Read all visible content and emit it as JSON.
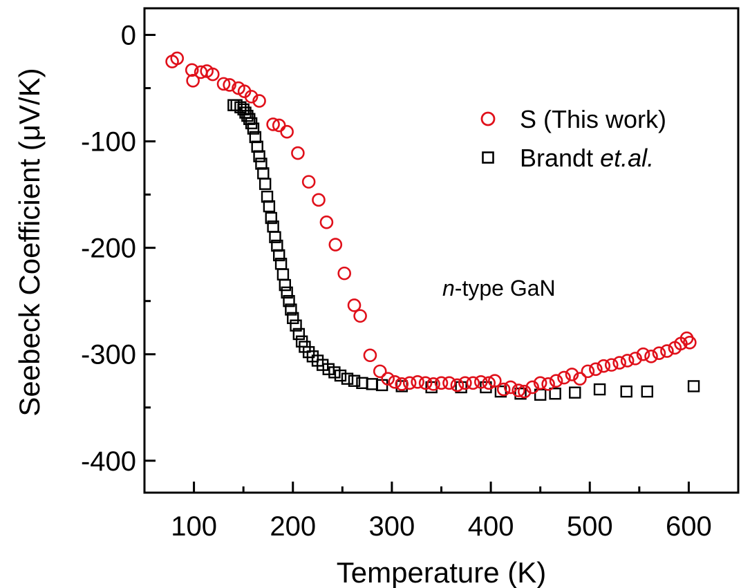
{
  "chart_data": {
    "type": "scatter",
    "title": "",
    "xlabel": "Temperature (K)",
    "ylabel": "Seebeck Coefficient (μV/K)",
    "xlim": [
      50,
      650
    ],
    "ylim": [
      -430,
      25
    ],
    "xticks": [
      100,
      200,
      300,
      400,
      500,
      600
    ],
    "yticks": [
      0,
      -100,
      -200,
      -300,
      -400
    ],
    "xtick_labels": [
      "100",
      "200",
      "300",
      "400",
      "500",
      "600"
    ],
    "ytick_labels": [
      "0",
      "-100",
      "-200",
      "-300",
      "-400"
    ],
    "grid": false,
    "legend_position": "top-right",
    "annotation": {
      "italic": "n",
      "rest": "-type GaN"
    },
    "series": [
      {
        "name": "S (This work)",
        "marker": "circle",
        "color": "#e0101a",
        "legend_parts": [
          {
            "text": "S (This work)",
            "italic": false
          }
        ],
        "points": [
          [
            78,
            -25
          ],
          [
            83,
            -22
          ],
          [
            98,
            -33
          ],
          [
            99,
            -43
          ],
          [
            107,
            -35
          ],
          [
            113,
            -34
          ],
          [
            119,
            -37
          ],
          [
            130,
            -46
          ],
          [
            136,
            -47
          ],
          [
            145,
            -50
          ],
          [
            151,
            -53
          ],
          [
            158,
            -58
          ],
          [
            166,
            -62
          ],
          [
            180,
            -84
          ],
          [
            186,
            -85
          ],
          [
            194,
            -91
          ],
          [
            205,
            -111
          ],
          [
            216,
            -138
          ],
          [
            226,
            -155
          ],
          [
            234,
            -176
          ],
          [
            243,
            -197
          ],
          [
            252,
            -224
          ],
          [
            262,
            -254
          ],
          [
            268,
            -264
          ],
          [
            278,
            -301
          ],
          [
            288,
            -316
          ],
          [
            296,
            -323
          ],
          [
            303,
            -326
          ],
          [
            310,
            -328
          ],
          [
            318,
            -327
          ],
          [
            326,
            -326
          ],
          [
            334,
            -327
          ],
          [
            342,
            -328
          ],
          [
            350,
            -327
          ],
          [
            358,
            -327
          ],
          [
            366,
            -329
          ],
          [
            374,
            -327
          ],
          [
            382,
            -327
          ],
          [
            390,
            -326
          ],
          [
            398,
            -327
          ],
          [
            404,
            -325
          ],
          [
            413,
            -333
          ],
          [
            420,
            -331
          ],
          [
            428,
            -334
          ],
          [
            434,
            -335
          ],
          [
            442,
            -331
          ],
          [
            450,
            -327
          ],
          [
            458,
            -328
          ],
          [
            466,
            -325
          ],
          [
            474,
            -322
          ],
          [
            482,
            -319
          ],
          [
            490,
            -323
          ],
          [
            498,
            -316
          ],
          [
            506,
            -314
          ],
          [
            514,
            -311
          ],
          [
            522,
            -310
          ],
          [
            530,
            -308
          ],
          [
            538,
            -306
          ],
          [
            546,
            -304
          ],
          [
            554,
            -300
          ],
          [
            562,
            -302
          ],
          [
            570,
            -299
          ],
          [
            578,
            -297
          ],
          [
            586,
            -294
          ],
          [
            592,
            -290
          ],
          [
            598,
            -285
          ],
          [
            601,
            -289
          ]
        ]
      },
      {
        "name": "Brandt et.al.",
        "marker": "square",
        "color": "#000000",
        "legend_parts": [
          {
            "text": "Brandt ",
            "italic": false
          },
          {
            "text": "et.al.",
            "italic": true
          }
        ],
        "points": [
          [
            140,
            -66
          ],
          [
            143,
            -66
          ],
          [
            147,
            -68
          ],
          [
            150,
            -70
          ],
          [
            152,
            -73
          ],
          [
            154,
            -76
          ],
          [
            156,
            -79
          ],
          [
            158,
            -83
          ],
          [
            160,
            -88
          ],
          [
            162,
            -96
          ],
          [
            164,
            -105
          ],
          [
            166,
            -114
          ],
          [
            168,
            -121
          ],
          [
            170,
            -130
          ],
          [
            172,
            -140
          ],
          [
            174,
            -152
          ],
          [
            176,
            -161
          ],
          [
            178,
            -172
          ],
          [
            180,
            -180
          ],
          [
            182,
            -190
          ],
          [
            184,
            -198
          ],
          [
            186,
            -207
          ],
          [
            188,
            -215
          ],
          [
            190,
            -225
          ],
          [
            192,
            -235
          ],
          [
            194,
            -242
          ],
          [
            196,
            -250
          ],
          [
            198,
            -258
          ],
          [
            200,
            -266
          ],
          [
            203,
            -273
          ],
          [
            206,
            -281
          ],
          [
            209,
            -288
          ],
          [
            212,
            -293
          ],
          [
            216,
            -298
          ],
          [
            220,
            -302
          ],
          [
            225,
            -306
          ],
          [
            230,
            -310
          ],
          [
            236,
            -314
          ],
          [
            242,
            -317
          ],
          [
            248,
            -320
          ],
          [
            255,
            -323
          ],
          [
            262,
            -325
          ],
          [
            270,
            -327
          ],
          [
            280,
            -328
          ],
          [
            290,
            -329
          ],
          [
            310,
            -330
          ],
          [
            340,
            -331
          ],
          [
            370,
            -331
          ],
          [
            395,
            -331
          ],
          [
            410,
            -335
          ],
          [
            430,
            -337
          ],
          [
            450,
            -338
          ],
          [
            465,
            -337
          ],
          [
            485,
            -336
          ],
          [
            510,
            -333
          ],
          [
            537,
            -335
          ],
          [
            558,
            -335
          ],
          [
            605,
            -330
          ]
        ]
      }
    ]
  }
}
